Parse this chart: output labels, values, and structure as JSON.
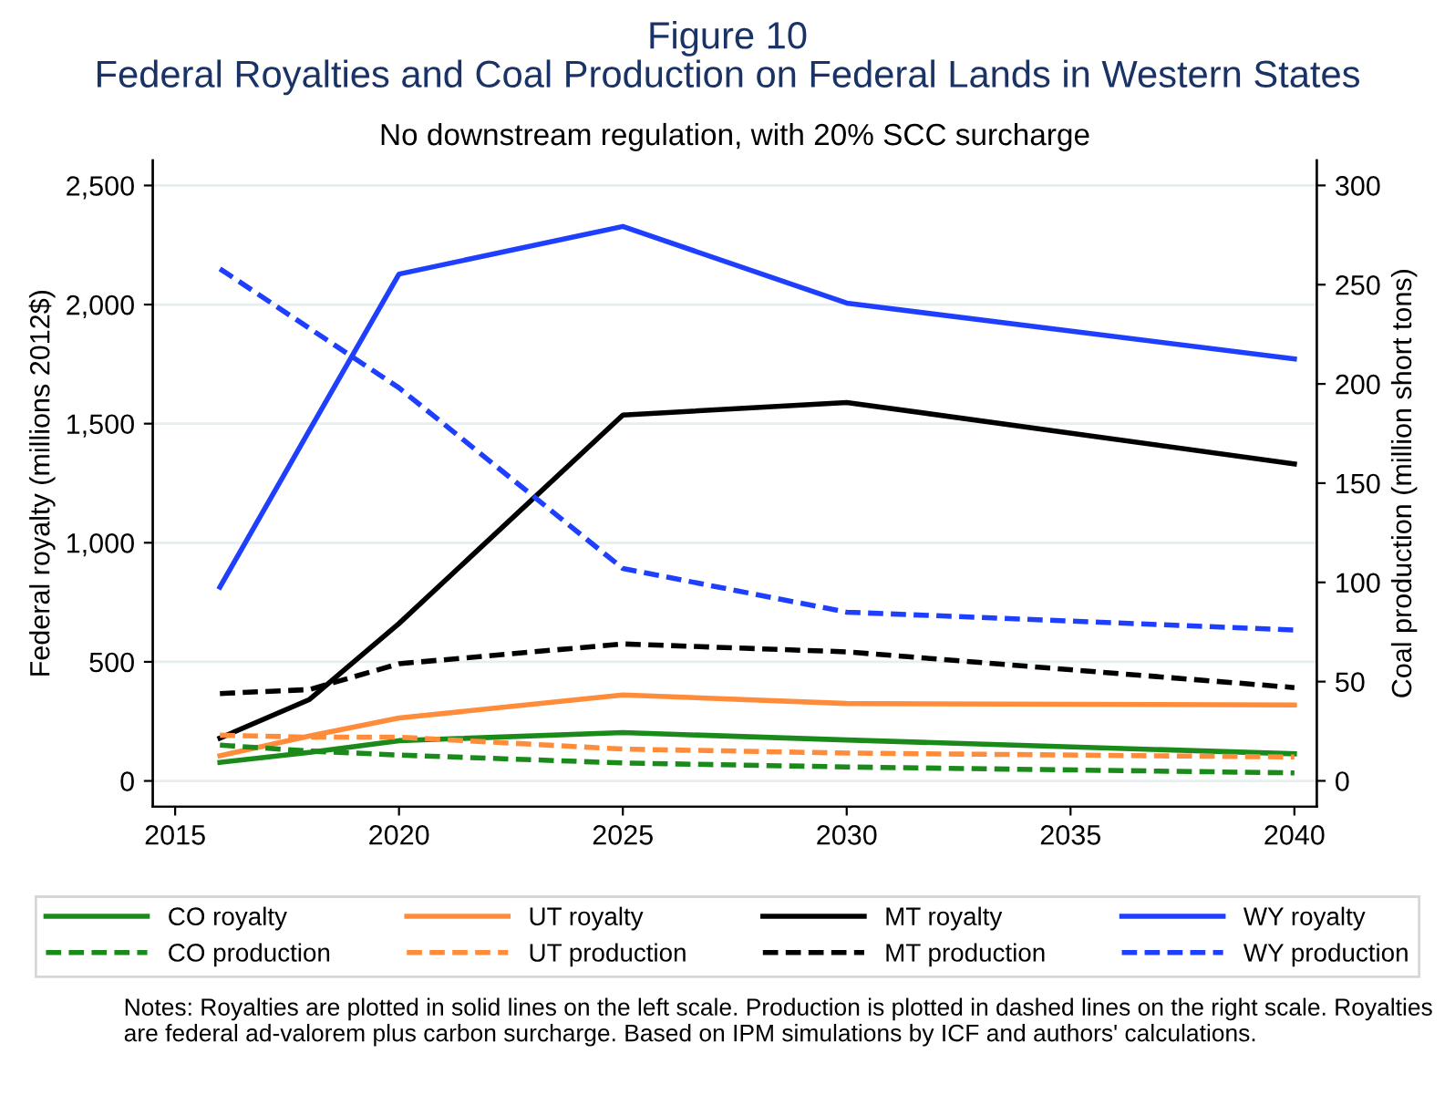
{
  "chart_data": {
    "type": "line",
    "title": "Figure 10",
    "subtitle": "Federal Royalties and Coal Production on Federal Lands in Western States",
    "annotations": [
      "No downstream regulation, with 20% SCC surcharge",
      "Notes: Royalties are plotted in solid lines on the left scale. Production is plotted in dashed lines on the right scale. Royalties are federal ad-valorem plus carbon surcharge. Based on IPM simulations by ICF and authors' calculations."
    ],
    "ylabel": "Federal royalty (millions 2012$)",
    "y2label": "Coal production (million short tons)",
    "x": [
      2016,
      2018,
      2020,
      2025,
      2030,
      2040
    ],
    "xlim": [
      2014.5,
      2040.5
    ],
    "xticks": [
      2015,
      2020,
      2025,
      2030,
      2035,
      2040
    ],
    "ylim": [
      -108,
      2606
    ],
    "yticks": [
      {
        "value": 0,
        "label": "0"
      },
      {
        "value": 500,
        "label": "500"
      },
      {
        "value": 1000,
        "label": "1,000"
      },
      {
        "value": 1500,
        "label": "1,500"
      },
      {
        "value": 2000,
        "label": "2,000"
      },
      {
        "value": 2500,
        "label": "2,500"
      }
    ],
    "y2lim": [
      -13,
      312.7
    ],
    "y2ticks": [
      0,
      50,
      100,
      150,
      200,
      250,
      300
    ],
    "grid": "y",
    "legend": "bottom",
    "marker": "none",
    "series": [
      {
        "name": "CO royalty",
        "color": "#1a8a1a",
        "line_style": "solid",
        "values": [
          78,
          120,
          169,
          203,
          172,
          114
        ]
      },
      {
        "name": "CO production",
        "color": "#1a8a1a",
        "line_style": "dashed",
        "axis": "y2",
        "values": [
          18,
          15,
          13,
          9,
          7,
          4
        ]
      },
      {
        "name": "UT royalty",
        "color": "#ff8c3a",
        "line_style": "solid",
        "values": [
          106,
          189,
          264,
          361,
          325,
          319
        ]
      },
      {
        "name": "UT production",
        "color": "#ff8c3a",
        "line_style": "dashed",
        "axis": "y2",
        "values": [
          23,
          22,
          22,
          16,
          14,
          12
        ]
      },
      {
        "name": "MT royalty",
        "color": "#000000",
        "line_style": "solid",
        "values": [
          180,
          342,
          661,
          1536,
          1589,
          1331
        ]
      },
      {
        "name": "MT production",
        "color": "#000000",
        "line_style": "dashed",
        "axis": "y2",
        "values": [
          44,
          46,
          59,
          69,
          65,
          47
        ]
      },
      {
        "name": "WY royalty",
        "color": "#1f3fff",
        "line_style": "solid",
        "values": [
          814,
          1472,
          2128,
          2328,
          2006,
          1772
        ]
      },
      {
        "name": "WY production",
        "color": "#1f3fff",
        "line_style": "dashed",
        "axis": "y2",
        "values": [
          258,
          228,
          198,
          107,
          85,
          76
        ]
      }
    ]
  }
}
